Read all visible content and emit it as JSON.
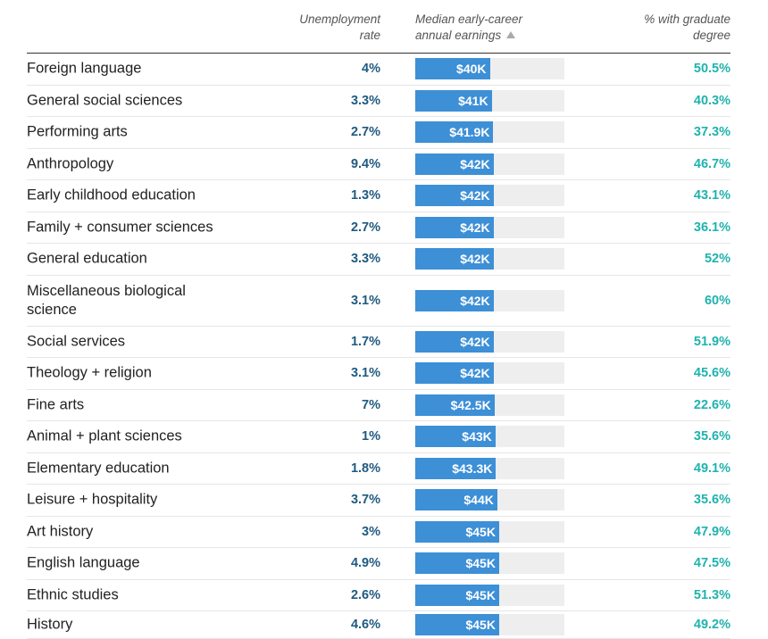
{
  "chart_data": {
    "type": "table",
    "columns": {
      "major": "",
      "unemployment": "Unemployment rate",
      "earnings": "Median early-career annual earnings",
      "graduate": "% with graduate degree"
    },
    "sort": {
      "column": "earnings",
      "direction": "ascending"
    },
    "earnings_max": 80000,
    "rows": [
      {
        "major": "Foreign language",
        "unemployment": "4%",
        "earnings_label": "$40K",
        "earnings": 40000,
        "graduate": "50.5%"
      },
      {
        "major": "General social sciences",
        "unemployment": "3.3%",
        "earnings_label": "$41K",
        "earnings": 41000,
        "graduate": "40.3%"
      },
      {
        "major": "Performing arts",
        "unemployment": "2.7%",
        "earnings_label": "$41.9K",
        "earnings": 41900,
        "graduate": "37.3%"
      },
      {
        "major": "Anthropology",
        "unemployment": "9.4%",
        "earnings_label": "$42K",
        "earnings": 42000,
        "graduate": "46.7%"
      },
      {
        "major": "Early childhood education",
        "unemployment": "1.3%",
        "earnings_label": "$42K",
        "earnings": 42000,
        "graduate": "43.1%"
      },
      {
        "major": "Family + consumer sciences",
        "unemployment": "2.7%",
        "earnings_label": "$42K",
        "earnings": 42000,
        "graduate": "36.1%"
      },
      {
        "major": "General education",
        "unemployment": "3.3%",
        "earnings_label": "$42K",
        "earnings": 42000,
        "graduate": "52%"
      },
      {
        "major": "Miscellaneous biological science",
        "unemployment": "3.1%",
        "earnings_label": "$42K",
        "earnings": 42000,
        "graduate": "60%"
      },
      {
        "major": "Social services",
        "unemployment": "1.7%",
        "earnings_label": "$42K",
        "earnings": 42000,
        "graduate": "51.9%"
      },
      {
        "major": "Theology + religion",
        "unemployment": "3.1%",
        "earnings_label": "$42K",
        "earnings": 42000,
        "graduate": "45.6%"
      },
      {
        "major": "Fine arts",
        "unemployment": "7%",
        "earnings_label": "$42.5K",
        "earnings": 42500,
        "graduate": "22.6%"
      },
      {
        "major": "Animal + plant sciences",
        "unemployment": "1%",
        "earnings_label": "$43K",
        "earnings": 43000,
        "graduate": "35.6%"
      },
      {
        "major": "Elementary education",
        "unemployment": "1.8%",
        "earnings_label": "$43.3K",
        "earnings": 43300,
        "graduate": "49.1%"
      },
      {
        "major": "Leisure + hospitality",
        "unemployment": "3.7%",
        "earnings_label": "$44K",
        "earnings": 44000,
        "graduate": "35.6%"
      },
      {
        "major": "Art history",
        "unemployment": "3%",
        "earnings_label": "$45K",
        "earnings": 45000,
        "graduate": "47.9%"
      },
      {
        "major": "English language",
        "unemployment": "4.9%",
        "earnings_label": "$45K",
        "earnings": 45000,
        "graduate": "47.5%"
      },
      {
        "major": "Ethnic studies",
        "unemployment": "2.6%",
        "earnings_label": "$45K",
        "earnings": 45000,
        "graduate": "51.3%"
      },
      {
        "major": "History",
        "unemployment": "4.6%",
        "earnings_label": "$45K",
        "earnings": 45000,
        "graduate": "49.2%"
      }
    ],
    "colors": {
      "bar": "#3d8fd6",
      "track": "#eeeeee",
      "unemployment_text": "#1f5a80",
      "graduate_text": "#1fb3ad"
    }
  }
}
